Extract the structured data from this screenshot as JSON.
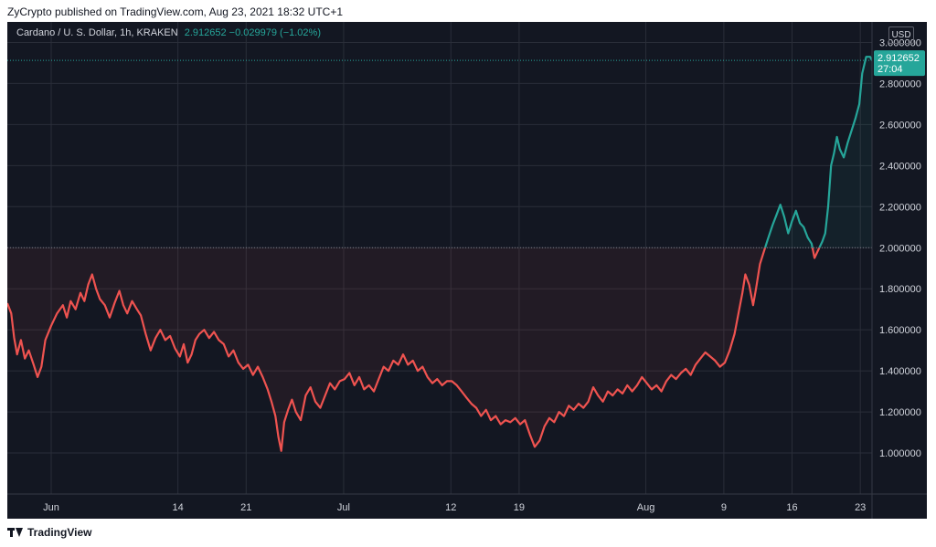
{
  "header": {
    "published_text": "ZyCrypto published on TradingView.com, Aug 23, 2021 18:32 UTC+1"
  },
  "legend": {
    "symbol": "Cardano / U. S. Dollar, 1h, KRAKEN",
    "values": "2.912652  −0.029979 (−1.02%)"
  },
  "price_axis": {
    "currency_button": "USD",
    "last_price_label": "2.912652",
    "countdown_label": "27:04"
  },
  "footer": {
    "brand": "TradingView"
  },
  "colors": {
    "background": "#131722",
    "grid": "#2a2e39",
    "up": "#26a69a",
    "down": "#ef5350",
    "text": "#d1d4dc"
  },
  "chart_data": {
    "type": "line",
    "title": "Cardano / U. S. Dollar, 1h, KRAKEN",
    "baseline": 2.0,
    "last_price": 2.912652,
    "ylim": [
      0.8,
      3.1
    ],
    "y_ticks": [
      "1.000000",
      "1.200000",
      "1.400000",
      "1.600000",
      "1.800000",
      "2.000000",
      "2.200000",
      "2.400000",
      "2.600000",
      "2.800000",
      "3.000000"
    ],
    "x_tick_labels": [
      "Jun",
      "14",
      "21",
      "Jul",
      "12",
      "19",
      "Aug",
      "9",
      "16",
      "23"
    ],
    "x_tick_days": [
      0,
      13,
      20,
      30,
      41,
      48,
      61,
      69,
      76,
      83
    ],
    "xlim_days": [
      -4.5,
      84.2
    ],
    "grid": true,
    "series": [
      {
        "points": [
          [
            -4.5,
            1.73
          ],
          [
            -4.1,
            1.68
          ],
          [
            -3.8,
            1.56
          ],
          [
            -3.5,
            1.48
          ],
          [
            -3.1,
            1.55
          ],
          [
            -2.7,
            1.46
          ],
          [
            -2.3,
            1.5
          ],
          [
            -1.8,
            1.43
          ],
          [
            -1.4,
            1.37
          ],
          [
            -1.0,
            1.42
          ],
          [
            -0.6,
            1.55
          ],
          [
            0.0,
            1.62
          ],
          [
            0.6,
            1.68
          ],
          [
            1.2,
            1.72
          ],
          [
            1.6,
            1.66
          ],
          [
            2.0,
            1.74
          ],
          [
            2.5,
            1.7
          ],
          [
            3.0,
            1.78
          ],
          [
            3.4,
            1.74
          ],
          [
            3.8,
            1.82
          ],
          [
            4.2,
            1.87
          ],
          [
            4.6,
            1.8
          ],
          [
            5.0,
            1.75
          ],
          [
            5.5,
            1.72
          ],
          [
            6.0,
            1.66
          ],
          [
            6.5,
            1.73
          ],
          [
            7.0,
            1.79
          ],
          [
            7.4,
            1.72
          ],
          [
            7.8,
            1.68
          ],
          [
            8.3,
            1.74
          ],
          [
            8.8,
            1.7
          ],
          [
            9.2,
            1.67
          ],
          [
            9.7,
            1.58
          ],
          [
            10.2,
            1.5
          ],
          [
            10.7,
            1.56
          ],
          [
            11.2,
            1.6
          ],
          [
            11.7,
            1.55
          ],
          [
            12.2,
            1.57
          ],
          [
            12.7,
            1.51
          ],
          [
            13.2,
            1.47
          ],
          [
            13.6,
            1.53
          ],
          [
            14.0,
            1.44
          ],
          [
            14.4,
            1.48
          ],
          [
            14.8,
            1.55
          ],
          [
            15.2,
            1.58
          ],
          [
            15.7,
            1.6
          ],
          [
            16.2,
            1.56
          ],
          [
            16.7,
            1.59
          ],
          [
            17.2,
            1.55
          ],
          [
            17.7,
            1.53
          ],
          [
            18.2,
            1.47
          ],
          [
            18.7,
            1.5
          ],
          [
            19.2,
            1.44
          ],
          [
            19.7,
            1.41
          ],
          [
            20.2,
            1.43
          ],
          [
            20.7,
            1.38
          ],
          [
            21.2,
            1.42
          ],
          [
            21.7,
            1.37
          ],
          [
            22.2,
            1.31
          ],
          [
            22.6,
            1.25
          ],
          [
            23.0,
            1.18
          ],
          [
            23.3,
            1.08
          ],
          [
            23.6,
            1.01
          ],
          [
            23.9,
            1.15
          ],
          [
            24.3,
            1.21
          ],
          [
            24.7,
            1.26
          ],
          [
            25.1,
            1.2
          ],
          [
            25.6,
            1.16
          ],
          [
            26.1,
            1.28
          ],
          [
            26.6,
            1.32
          ],
          [
            27.1,
            1.25
          ],
          [
            27.6,
            1.22
          ],
          [
            28.1,
            1.28
          ],
          [
            28.6,
            1.34
          ],
          [
            29.1,
            1.31
          ],
          [
            29.6,
            1.35
          ],
          [
            30.1,
            1.36
          ],
          [
            30.6,
            1.39
          ],
          [
            31.1,
            1.33
          ],
          [
            31.6,
            1.37
          ],
          [
            32.1,
            1.31
          ],
          [
            32.6,
            1.33
          ],
          [
            33.1,
            1.3
          ],
          [
            33.6,
            1.36
          ],
          [
            34.1,
            1.42
          ],
          [
            34.6,
            1.4
          ],
          [
            35.1,
            1.45
          ],
          [
            35.6,
            1.43
          ],
          [
            36.1,
            1.48
          ],
          [
            36.6,
            1.43
          ],
          [
            37.1,
            1.45
          ],
          [
            37.6,
            1.4
          ],
          [
            38.1,
            1.42
          ],
          [
            38.6,
            1.37
          ],
          [
            39.1,
            1.34
          ],
          [
            39.6,
            1.36
          ],
          [
            40.1,
            1.33
          ],
          [
            40.6,
            1.35
          ],
          [
            41.1,
            1.35
          ],
          [
            41.6,
            1.33
          ],
          [
            42.1,
            1.3
          ],
          [
            42.6,
            1.27
          ],
          [
            43.1,
            1.24
          ],
          [
            43.6,
            1.22
          ],
          [
            44.1,
            1.18
          ],
          [
            44.6,
            1.21
          ],
          [
            45.1,
            1.16
          ],
          [
            45.6,
            1.18
          ],
          [
            46.1,
            1.14
          ],
          [
            46.6,
            1.16
          ],
          [
            47.1,
            1.15
          ],
          [
            47.6,
            1.17
          ],
          [
            48.1,
            1.14
          ],
          [
            48.6,
            1.16
          ],
          [
            49.1,
            1.09
          ],
          [
            49.6,
            1.03
          ],
          [
            50.1,
            1.06
          ],
          [
            50.6,
            1.13
          ],
          [
            51.1,
            1.17
          ],
          [
            51.6,
            1.15
          ],
          [
            52.1,
            1.2
          ],
          [
            52.6,
            1.18
          ],
          [
            53.1,
            1.23
          ],
          [
            53.6,
            1.21
          ],
          [
            54.1,
            1.24
          ],
          [
            54.6,
            1.22
          ],
          [
            55.1,
            1.25
          ],
          [
            55.6,
            1.32
          ],
          [
            56.1,
            1.28
          ],
          [
            56.6,
            1.25
          ],
          [
            57.1,
            1.3
          ],
          [
            57.6,
            1.28
          ],
          [
            58.1,
            1.31
          ],
          [
            58.6,
            1.29
          ],
          [
            59.1,
            1.33
          ],
          [
            59.6,
            1.3
          ],
          [
            60.1,
            1.33
          ],
          [
            60.6,
            1.37
          ],
          [
            61.1,
            1.34
          ],
          [
            61.6,
            1.31
          ],
          [
            62.1,
            1.33
          ],
          [
            62.6,
            1.3
          ],
          [
            63.1,
            1.35
          ],
          [
            63.6,
            1.38
          ],
          [
            64.1,
            1.36
          ],
          [
            64.6,
            1.39
          ],
          [
            65.1,
            1.41
          ],
          [
            65.6,
            1.38
          ],
          [
            66.1,
            1.43
          ],
          [
            66.6,
            1.46
          ],
          [
            67.1,
            1.49
          ],
          [
            67.6,
            1.47
          ],
          [
            68.1,
            1.45
          ],
          [
            68.6,
            1.42
          ],
          [
            69.1,
            1.44
          ],
          [
            69.6,
            1.5
          ],
          [
            70.1,
            1.58
          ],
          [
            70.5,
            1.68
          ],
          [
            70.9,
            1.78
          ],
          [
            71.2,
            1.87
          ],
          [
            71.6,
            1.82
          ],
          [
            72.0,
            1.72
          ],
          [
            72.3,
            1.8
          ],
          [
            72.7,
            1.92
          ],
          [
            73.1,
            1.98
          ],
          [
            73.5,
            2.04
          ],
          [
            74.0,
            2.11
          ],
          [
            74.4,
            2.16
          ],
          [
            74.8,
            2.21
          ],
          [
            75.2,
            2.15
          ],
          [
            75.6,
            2.07
          ],
          [
            76.0,
            2.13
          ],
          [
            76.4,
            2.18
          ],
          [
            76.8,
            2.12
          ],
          [
            77.2,
            2.1
          ],
          [
            77.6,
            2.05
          ],
          [
            78.0,
            2.02
          ],
          [
            78.3,
            1.95
          ],
          [
            78.7,
            1.99
          ],
          [
            79.1,
            2.03
          ],
          [
            79.4,
            2.07
          ],
          [
            79.7,
            2.2
          ],
          [
            80.0,
            2.4
          ],
          [
            80.3,
            2.46
          ],
          [
            80.6,
            2.54
          ],
          [
            80.9,
            2.48
          ],
          [
            81.3,
            2.44
          ],
          [
            81.7,
            2.51
          ],
          [
            82.1,
            2.57
          ],
          [
            82.5,
            2.63
          ],
          [
            82.9,
            2.7
          ],
          [
            83.2,
            2.85
          ],
          [
            83.6,
            2.93
          ],
          [
            84.0,
            2.93
          ],
          [
            84.2,
            2.912652
          ]
        ]
      }
    ]
  }
}
